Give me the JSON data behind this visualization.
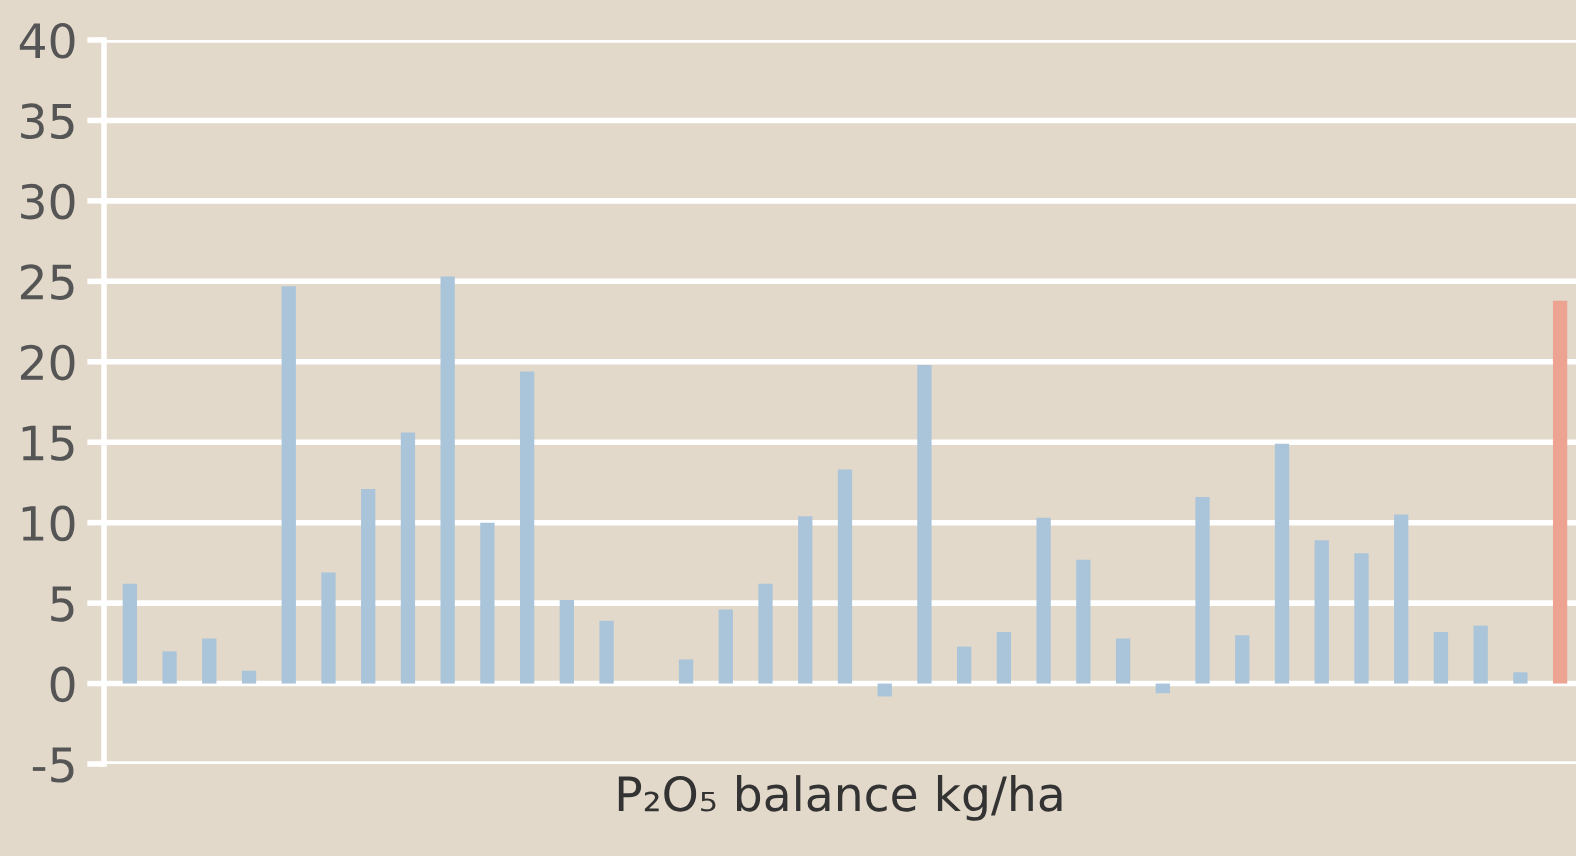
{
  "chart_data": {
    "type": "bar",
    "xlabel": "P₂O₅ balance kg/ha",
    "categories": [
      null,
      null,
      null,
      null,
      null,
      null,
      null,
      null,
      null,
      null,
      null,
      null,
      null,
      null,
      null,
      null,
      null,
      null,
      null,
      null,
      null,
      null,
      null,
      null,
      null,
      null,
      null,
      null,
      null,
      null,
      null,
      null,
      null,
      null,
      null,
      null,
      null
    ],
    "values": [
      6.2,
      2,
      2.8,
      0.8,
      24.7,
      6.9,
      12.1,
      15.6,
      25.3,
      10,
      19.4,
      5.2,
      3.9,
      null,
      1.5,
      4.6,
      6.2,
      10.4,
      13.3,
      -0.8,
      19.8,
      2.3,
      3.2,
      10.3,
      7.7,
      2.8,
      -0.6,
      11.6,
      3,
      14.9,
      8.9,
      8.1,
      10.5,
      3.2,
      3.6,
      0.7,
      23.8
    ],
    "colors": [
      "#aac4da",
      "#aac4da",
      "#aac4da",
      "#aac4da",
      "#aac4da",
      "#aac4da",
      "#aac4da",
      "#aac4da",
      "#aac4da",
      "#aac4da",
      "#aac4da",
      "#aac4da",
      "#aac4da",
      "#aac4da",
      "#aac4da",
      "#aac4da",
      "#aac4da",
      "#aac4da",
      "#aac4da",
      "#aac4da",
      "#aac4da",
      "#aac4da",
      "#aac4da",
      "#aac4da",
      "#aac4da",
      "#aac4da",
      "#aac4da",
      "#aac4da",
      "#aac4da",
      "#aac4da",
      "#aac4da",
      "#aac4da",
      "#aac4da",
      "#aac4da",
      "#aac4da",
      "#aac4da",
      "#eda392"
    ],
    "ylim": [
      -5,
      40
    ],
    "yticks": [
      -5,
      0,
      5,
      10,
      15,
      20,
      25,
      30,
      35,
      40
    ],
    "grid": "y",
    "tick_labels": "y"
  }
}
